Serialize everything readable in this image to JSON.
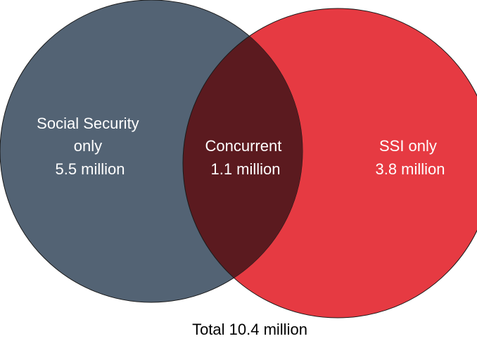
{
  "colors": {
    "social_security": "#536374",
    "ssi": "#e63a42",
    "concurrent": "#5b1a1f",
    "outline": "#1a1a1a",
    "text": "#ffffff",
    "total_text": "#000000"
  },
  "sets": {
    "social_security": {
      "label_lines": [
        "Social Security",
        "only",
        "5.5 million"
      ],
      "value_millions": 5.5
    },
    "concurrent": {
      "label_lines": [
        "Concurrent",
        "1.1 million"
      ],
      "value_millions": 1.1
    },
    "ssi": {
      "label_lines": [
        "SSI only",
        "3.8 million"
      ],
      "value_millions": 3.8
    }
  },
  "total": {
    "label": "Total 10.4 million",
    "value_millions": 10.4
  }
}
